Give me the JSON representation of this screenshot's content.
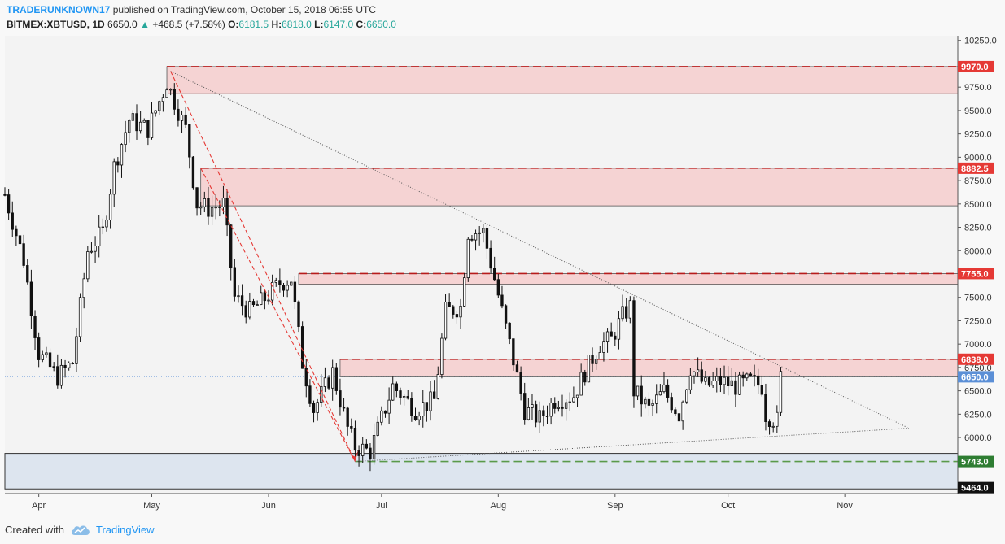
{
  "header": {
    "author": "TRADERUNKNOWN17",
    "published": "published on TradingView.com, October 15, 2018 06:55 UTC",
    "symbol": "BITMEX:XBTUSD, 1D",
    "last": "6650.0",
    "change_arrow": "▲",
    "change": "+468.5 (+7.58%)",
    "o_label": "O:",
    "o_value": "6181.5",
    "h_label": "H:",
    "h_value": "6818.0",
    "l_label": "L:",
    "l_value": "6147.0",
    "c_label": "C:",
    "c_value": "6650.0"
  },
  "footer": {
    "created_with": "Created with",
    "brand": "TradingView",
    "logo_icon": "tradingview-cloud-icon"
  },
  "colors": {
    "up": "#26a69a",
    "resistance_fill": "#f5d3d3",
    "support_fill": "#dde5ef",
    "resistance_line": "#b71c1c",
    "support_line": "#5a9a4a",
    "price_badge": "#5b8fd6"
  },
  "chart_data": {
    "type": "candlestick",
    "title": "BITMEX:XBTUSD, 1D",
    "xlabel": "",
    "ylabel": "",
    "ylim": [
      5400,
      10300
    ],
    "x_domain": [
      "2018-03-23",
      "2018-12-01"
    ],
    "y_ticks": [
      "6000.0",
      "6250.0",
      "6500.0",
      "6750.0",
      "7000.0",
      "7250.0",
      "7500.0",
      "7750.0",
      "8000.0",
      "8250.0",
      "8500.0",
      "8750.0",
      "9000.0",
      "9250.0",
      "9500.0",
      "9750.0",
      "10250.0"
    ],
    "x_ticks": [
      {
        "label": "Apr",
        "date": "2018-04-01"
      },
      {
        "label": "May",
        "date": "2018-05-01"
      },
      {
        "label": "Jun",
        "date": "2018-06-01"
      },
      {
        "label": "Jul",
        "date": "2018-07-01"
      },
      {
        "label": "Aug",
        "date": "2018-08-01"
      },
      {
        "label": "Sep",
        "date": "2018-09-01"
      },
      {
        "label": "Oct",
        "date": "2018-10-01"
      },
      {
        "label": "Nov",
        "date": "2018-11-01"
      }
    ],
    "resistance_zones": [
      {
        "level": 9970.0,
        "low": 9680,
        "start": "2018-05-05",
        "label": "9970.0"
      },
      {
        "level": 8882.5,
        "low": 8480,
        "start": "2018-05-14",
        "label": "8882.5"
      },
      {
        "level": 7755.0,
        "low": 7640,
        "start": "2018-06-09",
        "label": "7755.0"
      },
      {
        "level": 6838.0,
        "low": 6650,
        "start": "2018-06-20",
        "label": "6838.0"
      }
    ],
    "support_zone": {
      "high": 5830,
      "low": 5450,
      "level": 5743.0,
      "label": "5743.0"
    },
    "support_box_low_label": "5464.0",
    "current_price": {
      "value": 6650.0,
      "label": "6650.0"
    },
    "trendlines": [
      {
        "name": "descending-resistance-trendline",
        "from": [
          "2018-05-06",
          9920
        ],
        "to": [
          "2018-11-18",
          6100
        ]
      },
      {
        "name": "ascending-support-trendline",
        "from": [
          "2018-06-24",
          5743
        ],
        "to": [
          "2018-11-18",
          6100
        ]
      },
      {
        "name": "channel-line-upper",
        "from": [
          "2018-05-06",
          9920
        ],
        "to": [
          "2018-06-24",
          5743
        ]
      },
      {
        "name": "channel-line-lower",
        "from": [
          "2018-05-14",
          8882.5
        ],
        "to": [
          "2018-06-24",
          5743
        ]
      }
    ],
    "price_path": [
      [
        "2018-03-23",
        8600
      ],
      [
        "2018-03-28",
        7900
      ],
      [
        "2018-04-01",
        6900
      ],
      [
        "2018-04-06",
        6650
      ],
      [
        "2018-04-10",
        6800
      ],
      [
        "2018-04-14",
        8000
      ],
      [
        "2018-04-18",
        8200
      ],
      [
        "2018-04-21",
        8900
      ],
      [
        "2018-04-25",
        9400
      ],
      [
        "2018-04-30",
        9300
      ],
      [
        "2018-05-05",
        9800
      ],
      [
        "2018-05-10",
        9300
      ],
      [
        "2018-05-13",
        8500
      ],
      [
        "2018-05-16",
        8450
      ],
      [
        "2018-05-20",
        8500
      ],
      [
        "2018-05-23",
        7500
      ],
      [
        "2018-05-27",
        7350
      ],
      [
        "2018-05-30",
        7450
      ],
      [
        "2018-06-04",
        7650
      ],
      [
        "2018-06-07",
        7700
      ],
      [
        "2018-06-10",
        6800
      ],
      [
        "2018-06-13",
        6300
      ],
      [
        "2018-06-18",
        6700
      ],
      [
        "2018-06-22",
        6100
      ],
      [
        "2018-06-24",
        5900
      ],
      [
        "2018-06-28",
        5850
      ],
      [
        "2018-07-04",
        6550
      ],
      [
        "2018-07-10",
        6300
      ],
      [
        "2018-07-15",
        6400
      ],
      [
        "2018-07-18",
        7350
      ],
      [
        "2018-07-22",
        7400
      ],
      [
        "2018-07-24",
        8200
      ],
      [
        "2018-07-28",
        8200
      ],
      [
        "2018-07-31",
        7700
      ],
      [
        "2018-08-04",
        7000
      ],
      [
        "2018-08-08",
        6300
      ],
      [
        "2018-08-12",
        6200
      ],
      [
        "2018-08-16",
        6400
      ],
      [
        "2018-08-21",
        6450
      ],
      [
        "2018-08-24",
        6700
      ],
      [
        "2018-08-28",
        7000
      ],
      [
        "2018-08-31",
        7050
      ],
      [
        "2018-09-03",
        7300
      ],
      [
        "2018-09-05",
        7400
      ],
      [
        "2018-09-06",
        6500
      ],
      [
        "2018-09-10",
        6300
      ],
      [
        "2018-09-14",
        6500
      ],
      [
        "2018-09-18",
        6250
      ],
      [
        "2018-09-21",
        6750
      ],
      [
        "2018-09-25",
        6550
      ],
      [
        "2018-09-29",
        6600
      ],
      [
        "2018-10-03",
        6550
      ],
      [
        "2018-10-07",
        6600
      ],
      [
        "2018-10-10",
        6550
      ],
      [
        "2018-10-11",
        6250
      ],
      [
        "2018-10-14",
        6180
      ],
      [
        "2018-10-15",
        6650
      ]
    ]
  }
}
